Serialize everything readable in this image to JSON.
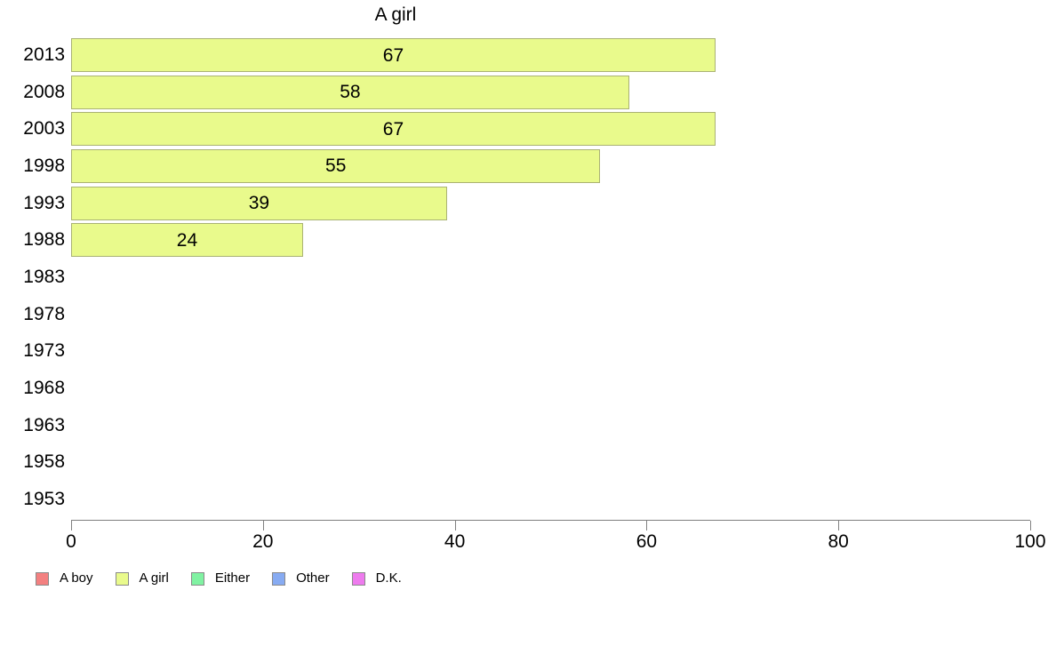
{
  "chart_data": {
    "type": "bar",
    "orientation": "horizontal",
    "title": "A girl",
    "categories": [
      "2013",
      "2008",
      "2003",
      "1998",
      "1993",
      "1988",
      "1983",
      "1978",
      "1973",
      "1968",
      "1963",
      "1958",
      "1953"
    ],
    "values": [
      67,
      58,
      67,
      55,
      39,
      24,
      null,
      null,
      null,
      null,
      null,
      null,
      null
    ],
    "xlabel": "",
    "ylabel": "",
    "xlim": [
      0,
      100
    ],
    "xticks": [
      0,
      20,
      40,
      60,
      80,
      100
    ],
    "grid": false,
    "value_labels_shown": true,
    "bar_fill": "#e9fa8c",
    "bar_border": "#aab274",
    "axis_color": "#808080",
    "text_color": "#000000",
    "legend_position": "bottom-left",
    "legend": [
      {
        "label": "A boy",
        "color": "#f38080"
      },
      {
        "label": "A girl",
        "color": "#e9fa8c"
      },
      {
        "label": "Either",
        "color": "#80f2a2"
      },
      {
        "label": "Other",
        "color": "#87abf2"
      },
      {
        "label": "D.K.",
        "color": "#ee7bee"
      }
    ]
  }
}
